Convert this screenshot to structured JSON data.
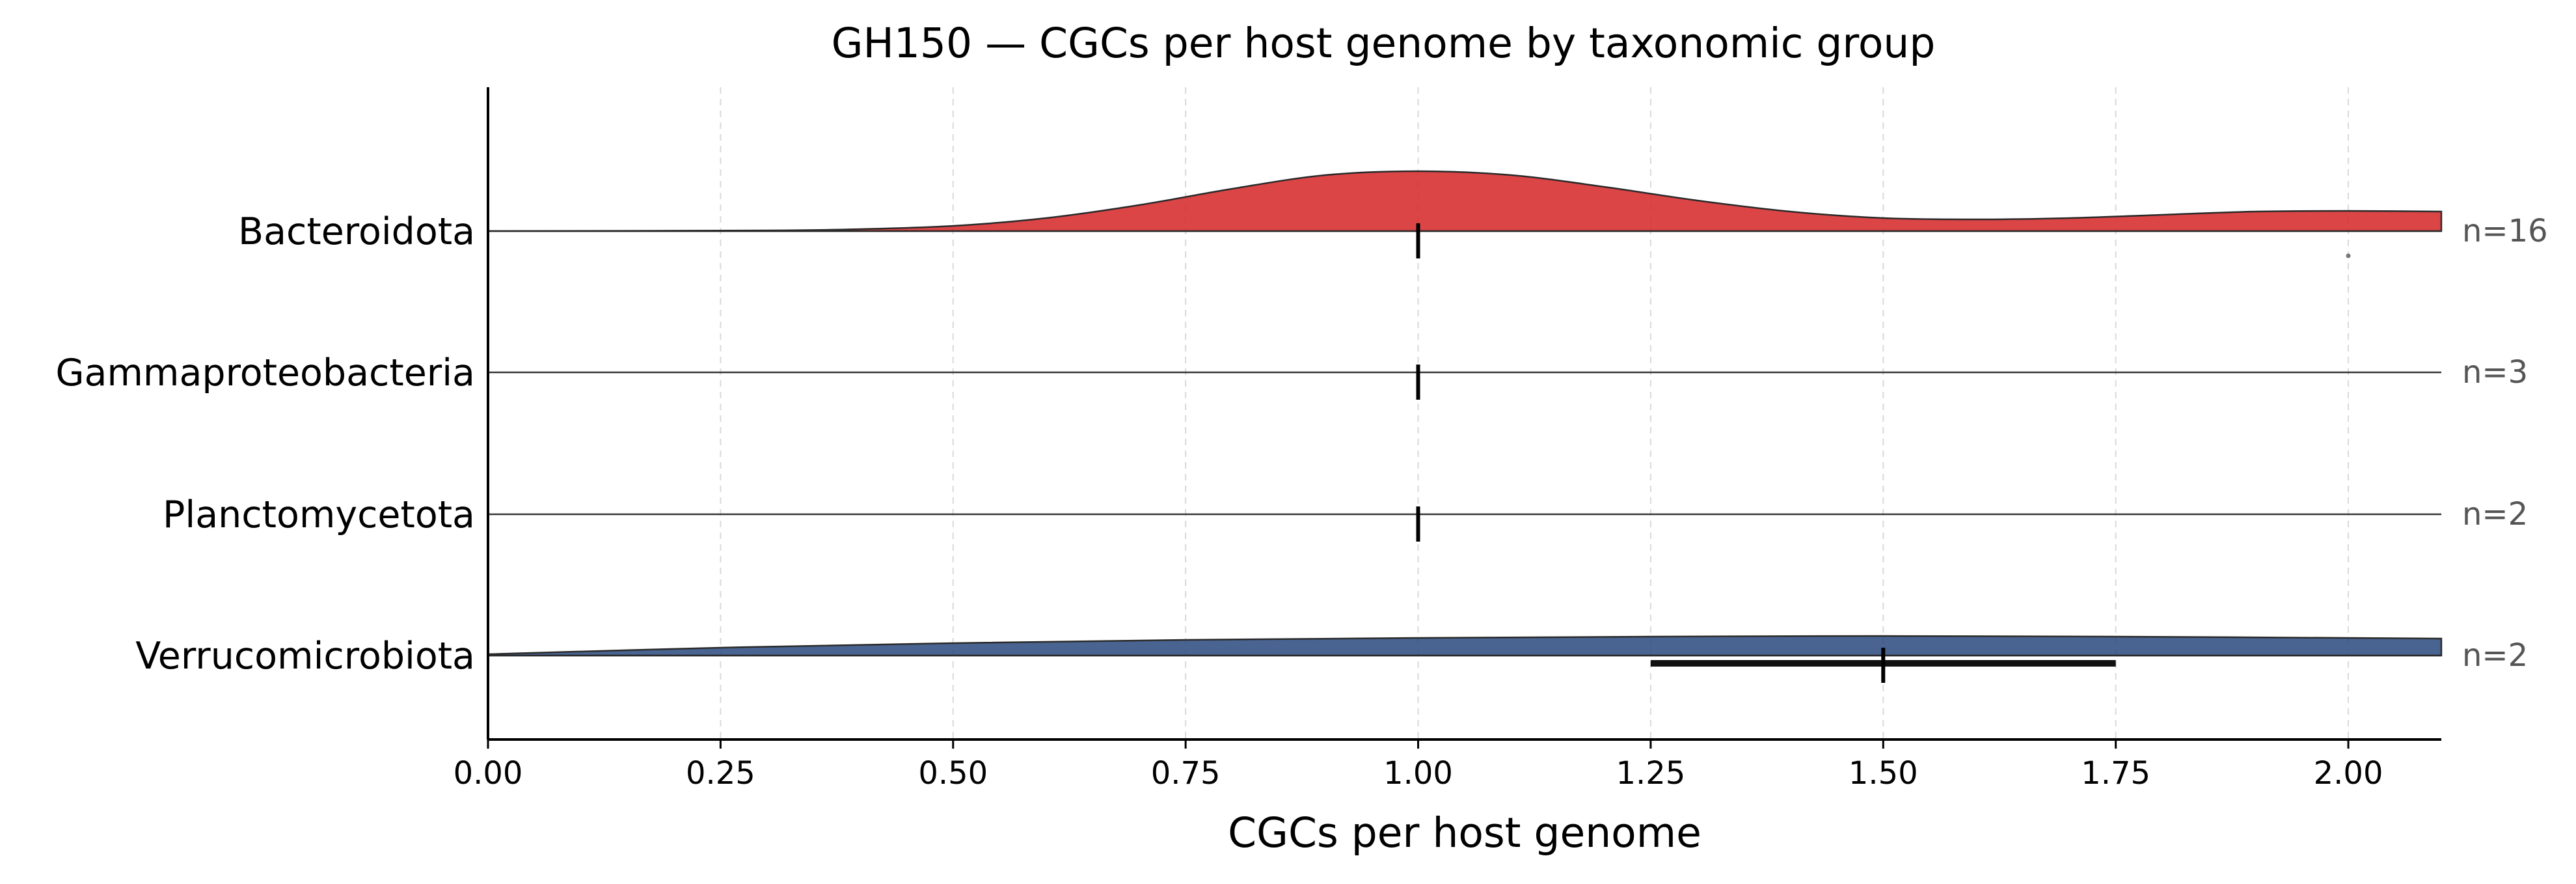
{
  "chart_data": {
    "type": "ridgeline",
    "title": "GH150 — CGCs per host genome by taxonomic group",
    "xlabel": "CGCs per host genome",
    "ylabel": "",
    "xlim": [
      0,
      2.1
    ],
    "xticks": [
      0.0,
      0.25,
      0.5,
      0.75,
      1.0,
      1.25,
      1.5,
      1.75,
      2.0
    ],
    "xtick_labels": [
      "0.00",
      "0.25",
      "0.50",
      "0.75",
      "1.00",
      "1.25",
      "1.50",
      "1.75",
      "2.00"
    ],
    "grid": "x-dashed",
    "legend": "none",
    "groups": [
      {
        "name": "Bacteroidota",
        "n_label": "n=16",
        "color": "#d62728",
        "median": 1.0,
        "iqr": [
          1.0,
          1.0
        ],
        "outliers": [
          2.0
        ],
        "density": {
          "x": [
            0.0,
            0.3,
            0.4,
            0.5,
            0.6,
            0.7,
            0.8,
            0.9,
            1.0,
            1.1,
            1.2,
            1.3,
            1.4,
            1.5,
            1.6,
            1.7,
            1.8,
            1.9,
            2.0,
            2.1
          ],
          "y": [
            0.0,
            0.01,
            0.03,
            0.08,
            0.2,
            0.4,
            0.65,
            0.86,
            0.92,
            0.86,
            0.68,
            0.47,
            0.3,
            0.2,
            0.18,
            0.2,
            0.25,
            0.3,
            0.31,
            0.3
          ]
        }
      },
      {
        "name": "Gammaproteobacteria",
        "n_label": "n=3",
        "color": "#d62728",
        "median": 1.0,
        "iqr": [
          1.0,
          1.0
        ],
        "outliers": [],
        "density": {
          "x": [],
          "y": []
        }
      },
      {
        "name": "Planctomycetota",
        "n_label": "n=2",
        "color": "#d62728",
        "median": 1.0,
        "iqr": [
          1.0,
          1.0
        ],
        "outliers": [],
        "density": {
          "x": [],
          "y": []
        }
      },
      {
        "name": "Verrucomicrobiota",
        "n_label": "n=2",
        "color": "#2b4a7f",
        "median": 1.5,
        "iqr": [
          1.25,
          1.75
        ],
        "outliers": [],
        "density": {
          "x": [
            0.0,
            0.25,
            0.5,
            0.75,
            1.0,
            1.25,
            1.5,
            1.75,
            2.0,
            2.1
          ],
          "y": [
            0.02,
            0.12,
            0.19,
            0.24,
            0.27,
            0.29,
            0.3,
            0.29,
            0.27,
            0.26
          ]
        }
      }
    ]
  }
}
